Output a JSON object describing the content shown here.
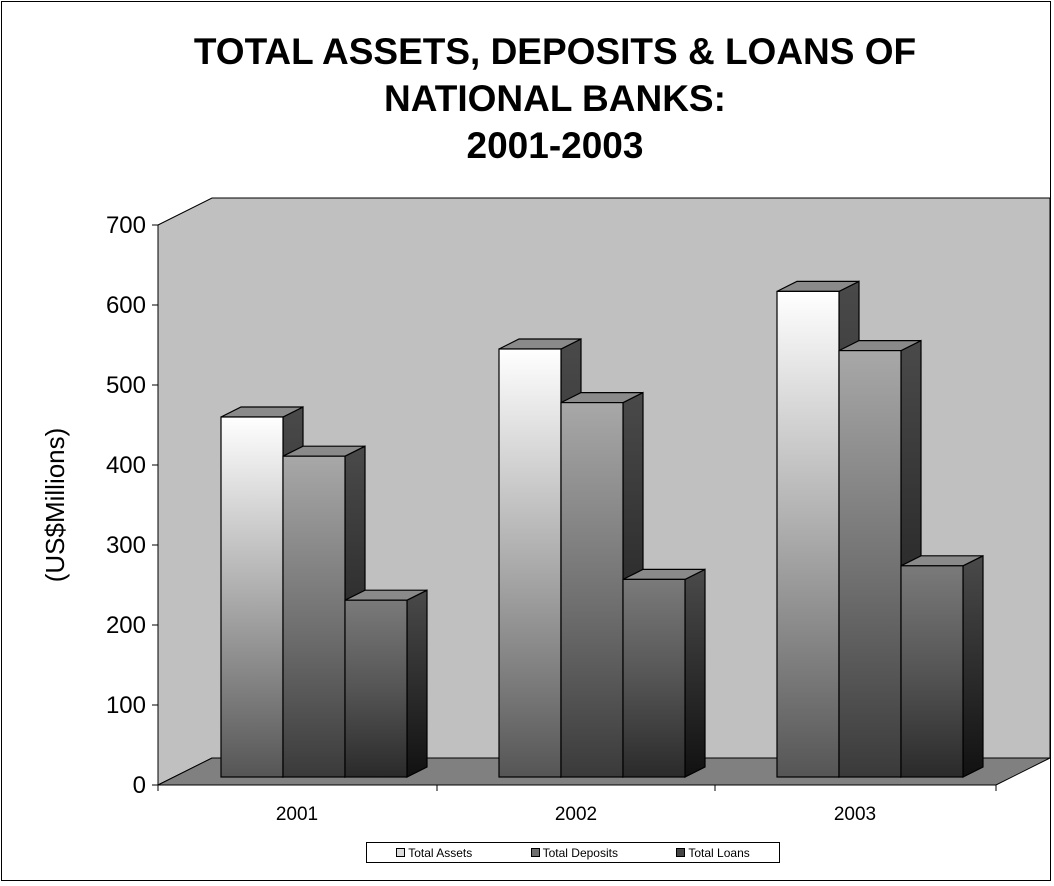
{
  "chart_data": {
    "type": "bar",
    "title_lines": [
      "TOTAL ASSETS, DEPOSITS & LOANS OF",
      "NATIONAL BANKS:",
      "2001-2003"
    ],
    "xlabel": "",
    "ylabel": "(US$Millions)",
    "ylim": [
      0,
      700
    ],
    "yticks": [
      "0",
      "100",
      "200",
      "300",
      "400",
      "500",
      "600",
      "700"
    ],
    "categories": [
      "2001",
      "2002",
      "2003"
    ],
    "series": [
      {
        "name": "Total Assets",
        "values": [
          460,
          545,
          617
        ],
        "color": "#dcdcdc"
      },
      {
        "name": "Total Deposits",
        "values": [
          411,
          478,
          543
        ],
        "color": "#8c8c8c"
      },
      {
        "name": "Total Loans",
        "values": [
          231,
          257,
          274
        ],
        "color": "#6a6a6a"
      }
    ],
    "legend_position": "bottom",
    "grid": false,
    "three_d": true,
    "wall_color": "#c0c0c0",
    "floor_color": "#808080"
  }
}
